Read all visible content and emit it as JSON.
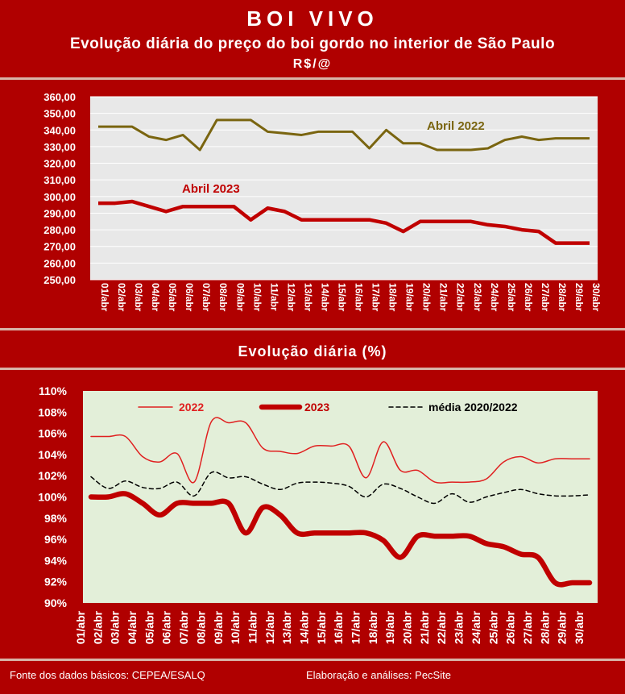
{
  "header": {
    "title": "BOI VIVO",
    "subtitle": "Evolução diária do preço do boi gordo no interior de São Paulo",
    "unit": "R$/@"
  },
  "section2_title": "Evolução diária (%)",
  "footer": {
    "source": "Fonte dos dados básicos: CEPEA/ESALQ",
    "credit": "Elaboração e análises: PecSite"
  },
  "colors": {
    "background": "#b00000",
    "plot_bg": "#e8e8e8",
    "plot_bg2": "#e3efd9",
    "series_2022_top": "#7a6510",
    "series_2023": "#c00000",
    "series_2022_bottom": "#e02020",
    "media": "#000000"
  },
  "chart_data": [
    {
      "type": "line",
      "title": "",
      "xlabel": "",
      "ylabel": "",
      "ylim": [
        250,
        360
      ],
      "y_ticks": [
        "250,00",
        "260,00",
        "270,00",
        "280,00",
        "290,00",
        "300,00",
        "310,00",
        "320,00",
        "330,00",
        "340,00",
        "350,00",
        "360,00"
      ],
      "x": [
        "01/abr",
        "02/abr",
        "03/abr",
        "04/abr",
        "05/abr",
        "06/abr",
        "07/abr",
        "08/abr",
        "09/abr",
        "10/abr",
        "11/abr",
        "12/abr",
        "13/abr",
        "14/abr",
        "15/abr",
        "16/abr",
        "17/abr",
        "18/abr",
        "19/abr",
        "20/abr",
        "21/abr",
        "22/abr",
        "23/abr",
        "24/abr",
        "25/abr",
        "26/abr",
        "27/abr",
        "28/abr",
        "29/abr",
        "30/abr"
      ],
      "grid": true,
      "series": [
        {
          "name": "Abril 2022",
          "color": "#7a6510",
          "values": [
            342,
            342,
            342,
            336,
            334,
            337,
            328,
            346,
            346,
            346,
            339,
            338,
            337,
            339,
            339,
            339,
            329,
            340,
            332,
            332,
            328,
            328,
            328,
            329,
            334,
            336,
            334,
            335,
            335,
            335
          ]
        },
        {
          "name": "Abril 2023",
          "color": "#c00000",
          "values": [
            296,
            296,
            297,
            294,
            291,
            294,
            294,
            294,
            294,
            286,
            293,
            291,
            286,
            286,
            286,
            286,
            286,
            284,
            279,
            285,
            285,
            285,
            285,
            283,
            282,
            280,
            279,
            272,
            272,
            272
          ]
        }
      ]
    },
    {
      "type": "line",
      "title": "",
      "xlabel": "",
      "ylabel": "",
      "ylim": [
        90,
        110
      ],
      "y_ticks": [
        "90%",
        "92%",
        "94%",
        "96%",
        "98%",
        "100%",
        "102%",
        "104%",
        "106%",
        "108%",
        "110%"
      ],
      "x": [
        "01/abr",
        "02/abr",
        "03/abr",
        "04/abr",
        "05/abr",
        "06/abr",
        "07/abr",
        "08/abr",
        "09/abr",
        "10/abr",
        "11/abr",
        "12/abr",
        "13/abr",
        "14/abr",
        "15/abr",
        "16/abr",
        "17/abr",
        "18/abr",
        "19/abr",
        "20/abr",
        "21/abr",
        "22/abr",
        "23/abr",
        "24/abr",
        "25/abr",
        "26/abr",
        "27/abr",
        "28/abr",
        "29/abr",
        "30/abr"
      ],
      "legend": "top",
      "series": [
        {
          "name": "2022",
          "color": "#e02020",
          "values": [
            105.7,
            105.7,
            105.7,
            103.8,
            103.3,
            104.1,
            101.4,
            107.1,
            107.0,
            107.0,
            104.6,
            104.3,
            104.1,
            104.8,
            104.8,
            104.8,
            101.8,
            105.2,
            102.5,
            102.5,
            101.4,
            101.4,
            101.4,
            101.7,
            103.3,
            103.8,
            103.2,
            103.6,
            103.6,
            103.6
          ]
        },
        {
          "name": "2023",
          "color": "#c00000",
          "values": [
            100.0,
            100.0,
            100.3,
            99.4,
            98.3,
            99.4,
            99.4,
            99.4,
            99.4,
            96.6,
            99.0,
            98.3,
            96.6,
            96.6,
            96.6,
            96.6,
            96.6,
            95.9,
            94.3,
            96.3,
            96.3,
            96.3,
            96.3,
            95.6,
            95.3,
            94.6,
            94.3,
            91.9,
            91.9,
            91.9
          ]
        },
        {
          "name": "média 2020/2022",
          "color": "#000000",
          "values": [
            101.9,
            100.8,
            101.5,
            100.9,
            100.8,
            101.4,
            100.1,
            102.3,
            101.8,
            101.9,
            101.2,
            100.7,
            101.3,
            101.4,
            101.3,
            101.0,
            100.0,
            101.2,
            100.8,
            100.0,
            99.4,
            100.3,
            99.5,
            100.0,
            100.4,
            100.7,
            100.3,
            100.1,
            100.1,
            100.2
          ]
        }
      ]
    }
  ]
}
